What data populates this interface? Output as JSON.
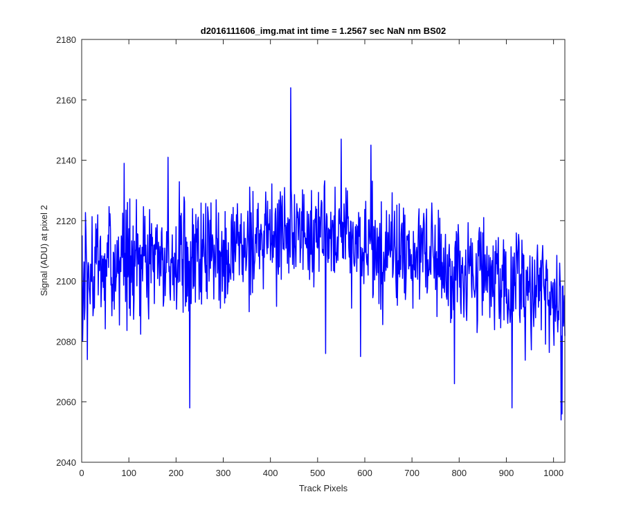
{
  "chart_data": {
    "type": "line",
    "title": "d2016111606_img.mat int time = 1.2567 sec  NaN nm BS02",
    "xlabel": "Track Pixels",
    "ylabel": "Signal (ADU) at pixel 2",
    "xlim": [
      0,
      1024
    ],
    "ylim": [
      2040,
      2180
    ],
    "xticks": [
      0,
      100,
      200,
      300,
      400,
      500,
      600,
      700,
      800,
      900,
      1000
    ],
    "yticks": [
      2040,
      2060,
      2080,
      2100,
      2120,
      2140,
      2160,
      2180
    ],
    "xtick_labels": [
      "0",
      "100",
      "200",
      "300",
      "400",
      "500",
      "600",
      "700",
      "800",
      "900",
      "1000"
    ],
    "ytick_labels": [
      "2040",
      "2060",
      "2080",
      "2100",
      "2120",
      "2140",
      "2160",
      "2180"
    ],
    "grid": false,
    "legend": "none",
    "line_color": "#0000ff",
    "series": [
      {
        "x_start": 1,
        "x_step": 1,
        "trend": [
          [
            0,
            2103
          ],
          [
            100,
            2106
          ],
          [
            200,
            2107
          ],
          [
            300,
            2109
          ],
          [
            400,
            2114
          ],
          [
            450,
            2117
          ],
          [
            500,
            2116
          ],
          [
            600,
            2112
          ],
          [
            700,
            2108
          ],
          [
            800,
            2104
          ],
          [
            900,
            2099
          ],
          [
            1024,
            2094
          ]
        ],
        "noise_amplitude": 9,
        "spikes": [
          [
            2,
            2080
          ],
          [
            12,
            2074
          ],
          [
            90,
            2139
          ],
          [
            183,
            2141
          ],
          [
            229,
            2058
          ],
          [
            443,
            2164
          ],
          [
            517,
            2076
          ],
          [
            550,
            2147
          ],
          [
            591,
            2075
          ],
          [
            613,
            2145
          ],
          [
            790,
            2066
          ],
          [
            912,
            2058
          ],
          [
            1016,
            2054
          ],
          [
            1018,
            2056
          ]
        ]
      }
    ]
  }
}
